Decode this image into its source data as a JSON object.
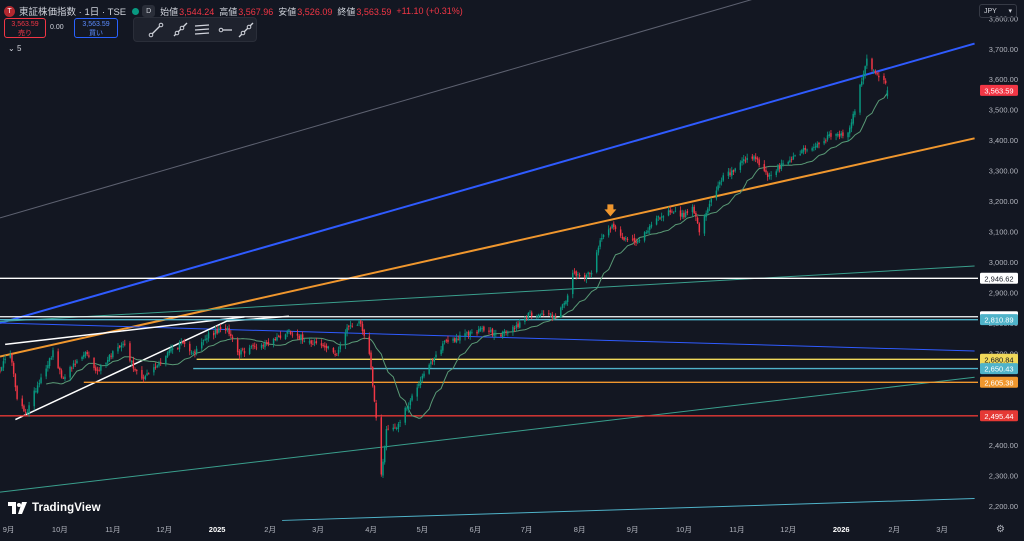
{
  "header": {
    "symbol": "東証株価指数",
    "interval": "1日",
    "exchange": "TSE",
    "symbol_line": "東証株価指数 · 1日 · TSE",
    "dot_color": "#089981",
    "d_badge": "D",
    "ohlc": [
      {
        "label": "始値",
        "value": "3,544.24"
      },
      {
        "label": "高値",
        "value": "3,567.96"
      },
      {
        "label": "安値",
        "value": "3,526.09"
      },
      {
        "label": "終値",
        "value": "3,563.59"
      }
    ],
    "change": "+11.10 (+0.31%)",
    "sell_price": "3,563.59",
    "sell_label": "売り",
    "spread": "0.00",
    "buy_price": "3,563.59",
    "buy_label": "買い",
    "indicator": "5"
  },
  "toolbar": {
    "icons": [
      "trend-line-icon",
      "ray-icon",
      "parallel-channel-icon",
      "horizontal-ray-icon",
      "extended-line-icon"
    ]
  },
  "currency": "JPY",
  "brand": "TradingView",
  "colors": {
    "background": "#131722",
    "up": "#089981",
    "down": "#f23645",
    "ma": "#5a9a76",
    "blue_line": "#2f5bff",
    "orange_line": "#f0972e",
    "green_line": "#3a9f8d",
    "gray_line": "#5d6170",
    "white_line": "#ffffff",
    "red_level": "#e53935",
    "yellow_level": "#f0d85a",
    "cyan_level": "#4fb3c9",
    "orange_level": "#f0972e",
    "price_tag": "#f23645",
    "arrow": "#f0972e"
  },
  "chart_data": {
    "type": "candlestick",
    "x_ticks": [
      {
        "date": "2024-09-01",
        "label": "9月"
      },
      {
        "date": "2024-10-01",
        "label": "10月"
      },
      {
        "date": "2024-11-01",
        "label": "11月"
      },
      {
        "date": "2024-12-01",
        "label": "12月"
      },
      {
        "date": "2025-01-01",
        "label": "2025"
      },
      {
        "date": "2025-02-01",
        "label": "2月"
      },
      {
        "date": "2025-03-01",
        "label": "3月"
      },
      {
        "date": "2025-04-01",
        "label": "4月"
      },
      {
        "date": "2025-05-01",
        "label": "5月"
      },
      {
        "date": "2025-06-01",
        "label": "6月"
      },
      {
        "date": "2025-07-01",
        "label": "7月"
      },
      {
        "date": "2025-08-01",
        "label": "8月"
      },
      {
        "date": "2025-09-01",
        "label": "9月"
      },
      {
        "date": "2025-10-01",
        "label": "10月"
      },
      {
        "date": "2025-11-01",
        "label": "11月"
      },
      {
        "date": "2025-12-01",
        "label": "12月"
      },
      {
        "date": "2026-01-01",
        "label": "2026"
      },
      {
        "date": "2026-02-01",
        "label": "2月"
      },
      {
        "date": "2026-03-01",
        "label": "3月"
      }
    ],
    "y_ticks": [
      {
        "value": 2200,
        "label": "2,200.00"
      },
      {
        "value": 2300,
        "label": "2,300.00"
      },
      {
        "value": 2400,
        "label": "2,400.00"
      },
      {
        "value": 2500,
        "label": "2,500.00"
      },
      {
        "value": 2600,
        "label": "2,600.00"
      },
      {
        "value": 2700,
        "label": "2,700.00"
      },
      {
        "value": 2800,
        "label": "2,800.00"
      },
      {
        "value": 2900,
        "label": "2,900.00"
      },
      {
        "value": 3000,
        "label": "3,000.00"
      },
      {
        "value": 3100,
        "label": "3,100.00"
      },
      {
        "value": 3200,
        "label": "3,200.00"
      },
      {
        "value": 3300,
        "label": "3,300.00"
      },
      {
        "value": 3400,
        "label": "3,400.00"
      },
      {
        "value": 3500,
        "label": "3,500.00"
      },
      {
        "value": 3600,
        "label": "3,600.00"
      },
      {
        "value": 3700,
        "label": "3,700.00"
      },
      {
        "value": 3800,
        "label": "3,800.00"
      }
    ],
    "y_range": [
      2160,
      3860
    ],
    "x_range": [
      "2024-08-27",
      "2026-03-22"
    ],
    "grid": false,
    "last_price": {
      "value": 3563.59,
      "label": "3,563.59"
    },
    "horizontal_levels": [
      {
        "value": 2946.62,
        "label": "2,946.62",
        "color": "#ffffff",
        "from": "2024-08-27"
      },
      {
        "value": 2820.4,
        "label": "2,820.40",
        "color": "#ffffff",
        "from": "2024-08-27"
      },
      {
        "value": 2810.89,
        "label": "2,810.89",
        "color": "#4fb3c9",
        "from": "2024-08-27"
      },
      {
        "value": 2680.84,
        "label": "2,680.84",
        "color": "#f0d85a",
        "from": "2024-12-20"
      },
      {
        "value": 2650.43,
        "label": "2,650.43",
        "color": "#4fb3c9",
        "from": "2024-12-18"
      },
      {
        "value": 2605.38,
        "label": "2,605.38",
        "color": "#f0972e",
        "from": "2024-10-15"
      },
      {
        "value": 2495.44,
        "label": "2,495.44",
        "color": "#e53935",
        "from": "2024-08-27"
      }
    ],
    "trend_lines": [
      {
        "name": "blue-channel-top",
        "color": "#2f5bff",
        "width": 2,
        "points": [
          [
            "2024-08-27",
            2800
          ],
          [
            "2026-03-20",
            3717
          ]
        ]
      },
      {
        "name": "orange-trend",
        "color": "#f0972e",
        "width": 2,
        "points": [
          [
            "2024-08-27",
            2690
          ],
          [
            "2026-03-20",
            3406
          ]
        ]
      },
      {
        "name": "gray-channel",
        "color": "#5d6170",
        "width": 1,
        "points": [
          [
            "2024-08-27",
            3145
          ],
          [
            "2025-11-10",
            3862
          ]
        ]
      },
      {
        "name": "blue-descending",
        "color": "#2f5bff",
        "width": 1,
        "points": [
          [
            "2024-08-27",
            2800
          ],
          [
            "2026-03-20",
            2708
          ]
        ]
      },
      {
        "name": "green-upper",
        "color": "#3a9f8d",
        "width": 1,
        "points": [
          [
            "2024-08-27",
            2805
          ],
          [
            "2026-03-20",
            2987
          ]
        ]
      },
      {
        "name": "green-lower",
        "color": "#3a9f8d",
        "width": 1,
        "points": [
          [
            "2024-08-27",
            2245
          ],
          [
            "2026-03-20",
            2622
          ]
        ]
      },
      {
        "name": "cyan-bottom",
        "color": "#4fb3c9",
        "width": 1,
        "points": [
          [
            "2025-02-08",
            2152
          ],
          [
            "2026-03-20",
            2224
          ]
        ]
      },
      {
        "name": "white-wedge-top",
        "color": "#ffffff",
        "width": 1.5,
        "points": [
          [
            "2024-08-30",
            2730
          ],
          [
            "2025-01-17",
            2820
          ]
        ]
      },
      {
        "name": "white-wedge-bottom",
        "color": "#ffffff",
        "width": 1.5,
        "points": [
          [
            "2024-09-05",
            2483
          ],
          [
            "2025-01-10",
            2815
          ]
        ]
      },
      {
        "name": "white-short",
        "color": "#ffffff",
        "width": 1.5,
        "points": [
          [
            "2025-01-07",
            2806
          ],
          [
            "2025-02-12",
            2822
          ]
        ]
      }
    ],
    "arrow_marker": {
      "date": "2025-08-19",
      "value": 3150,
      "color": "#f0972e"
    },
    "anchors": [
      [
        "2024-08-27",
        2650
      ],
      [
        "2024-09-02",
        2705
      ],
      [
        "2024-09-06",
        2550
      ],
      [
        "2024-09-11",
        2500
      ],
      [
        "2024-09-17",
        2585
      ],
      [
        "2024-09-27",
        2705
      ],
      [
        "2024-10-02",
        2620
      ],
      [
        "2024-10-10",
        2665
      ],
      [
        "2024-10-16",
        2700
      ],
      [
        "2024-10-23",
        2640
      ],
      [
        "2024-11-01",
        2705
      ],
      [
        "2024-11-07",
        2740
      ],
      [
        "2024-11-13",
        2655
      ],
      [
        "2024-11-19",
        2620
      ],
      [
        "2024-11-27",
        2660
      ],
      [
        "2024-12-04",
        2710
      ],
      [
        "2024-12-11",
        2730
      ],
      [
        "2024-12-19",
        2705
      ],
      [
        "2024-12-27",
        2760
      ],
      [
        "2025-01-07",
        2785
      ],
      [
        "2025-01-14",
        2700
      ],
      [
        "2025-01-21",
        2720
      ],
      [
        "2025-01-28",
        2730
      ],
      [
        "2025-02-05",
        2750
      ],
      [
        "2025-02-12",
        2775
      ],
      [
        "2025-02-20",
        2750
      ],
      [
        "2025-02-27",
        2735
      ],
      [
        "2025-03-05",
        2720
      ],
      [
        "2025-03-12",
        2700
      ],
      [
        "2025-03-19",
        2790
      ],
      [
        "2025-03-26",
        2800
      ],
      [
        "2025-03-31",
        2700
      ],
      [
        "2025-04-03",
        2550
      ],
      [
        "2025-04-07",
        2300
      ],
      [
        "2025-04-10",
        2450
      ],
      [
        "2025-04-16",
        2460
      ],
      [
        "2025-04-24",
        2545
      ],
      [
        "2025-05-01",
        2630
      ],
      [
        "2025-05-08",
        2680
      ],
      [
        "2025-05-14",
        2740
      ],
      [
        "2025-05-22",
        2750
      ],
      [
        "2025-05-30",
        2770
      ],
      [
        "2025-06-06",
        2780
      ],
      [
        "2025-06-13",
        2760
      ],
      [
        "2025-06-20",
        2770
      ],
      [
        "2025-06-27",
        2800
      ],
      [
        "2025-07-03",
        2830
      ],
      [
        "2025-07-10",
        2830
      ],
      [
        "2025-07-18",
        2825
      ],
      [
        "2025-07-24",
        2870
      ],
      [
        "2025-07-28",
        2960
      ],
      [
        "2025-08-01",
        2950
      ],
      [
        "2025-08-08",
        2960
      ],
      [
        "2025-08-13",
        3080
      ],
      [
        "2025-08-20",
        3120
      ],
      [
        "2025-08-27",
        3080
      ],
      [
        "2025-09-03",
        3060
      ],
      [
        "2025-09-10",
        3110
      ],
      [
        "2025-09-17",
        3150
      ],
      [
        "2025-09-24",
        3170
      ],
      [
        "2025-10-01",
        3150
      ],
      [
        "2025-10-06",
        3190
      ],
      [
        "2025-10-10",
        3100
      ],
      [
        "2025-10-17",
        3200
      ],
      [
        "2025-10-24",
        3280
      ],
      [
        "2025-10-31",
        3300
      ],
      [
        "2025-11-05",
        3330
      ],
      [
        "2025-11-12",
        3340
      ],
      [
        "2025-11-19",
        3280
      ],
      [
        "2025-11-26",
        3310
      ],
      [
        "2025-12-03",
        3340
      ],
      [
        "2025-12-10",
        3370
      ],
      [
        "2025-12-17",
        3380
      ],
      [
        "2025-12-24",
        3410
      ],
      [
        "2026-01-05",
        3420
      ],
      [
        "2026-01-09",
        3500
      ],
      [
        "2026-01-13",
        3600
      ],
      [
        "2026-01-16",
        3660
      ],
      [
        "2026-01-21",
        3620
      ],
      [
        "2026-01-26",
        3600
      ],
      [
        "2026-01-28",
        3563.59
      ]
    ]
  }
}
